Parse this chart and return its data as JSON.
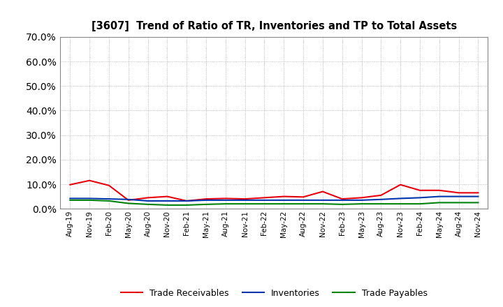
{
  "title": "[3607]  Trend of Ratio of TR, Inventories and TP to Total Assets",
  "labels": [
    "Aug-19",
    "Nov-19",
    "Feb-20",
    "May-20",
    "Aug-20",
    "Nov-20",
    "Feb-21",
    "May-21",
    "Aug-21",
    "Nov-21",
    "Feb-22",
    "May-22",
    "Aug-22",
    "Nov-22",
    "Feb-23",
    "May-23",
    "Aug-23",
    "Nov-23",
    "Feb-24",
    "May-24",
    "Aug-24",
    "Nov-24"
  ],
  "trade_receivables": [
    9.8,
    11.5,
    9.5,
    3.5,
    4.5,
    5.0,
    3.2,
    4.0,
    4.2,
    4.0,
    4.5,
    5.0,
    4.8,
    7.0,
    4.0,
    4.5,
    5.5,
    9.8,
    7.5,
    7.5,
    6.5,
    6.5
  ],
  "inventories": [
    4.2,
    4.2,
    4.0,
    3.8,
    3.2,
    3.2,
    3.2,
    3.5,
    3.5,
    3.5,
    3.5,
    3.5,
    3.5,
    3.5,
    3.5,
    3.5,
    3.8,
    4.2,
    4.5,
    5.0,
    5.0,
    5.0
  ],
  "trade_payables": [
    3.5,
    3.5,
    3.2,
    2.2,
    1.8,
    1.5,
    1.5,
    1.8,
    2.0,
    2.0,
    2.0,
    2.0,
    2.0,
    2.0,
    1.8,
    2.0,
    2.0,
    2.0,
    2.0,
    2.5,
    2.5,
    2.5
  ],
  "tr_color": "#e8000d",
  "inv_color": "#0035ad",
  "tp_color": "#00820d",
  "ylim": [
    0,
    70
  ],
  "yticks": [
    0,
    10,
    20,
    30,
    40,
    50,
    60,
    70
  ],
  "background_color": "#ffffff",
  "grid_color": "#aaaaaa",
  "legend_labels": [
    "Trade Receivables",
    "Inventories",
    "Trade Payables"
  ]
}
